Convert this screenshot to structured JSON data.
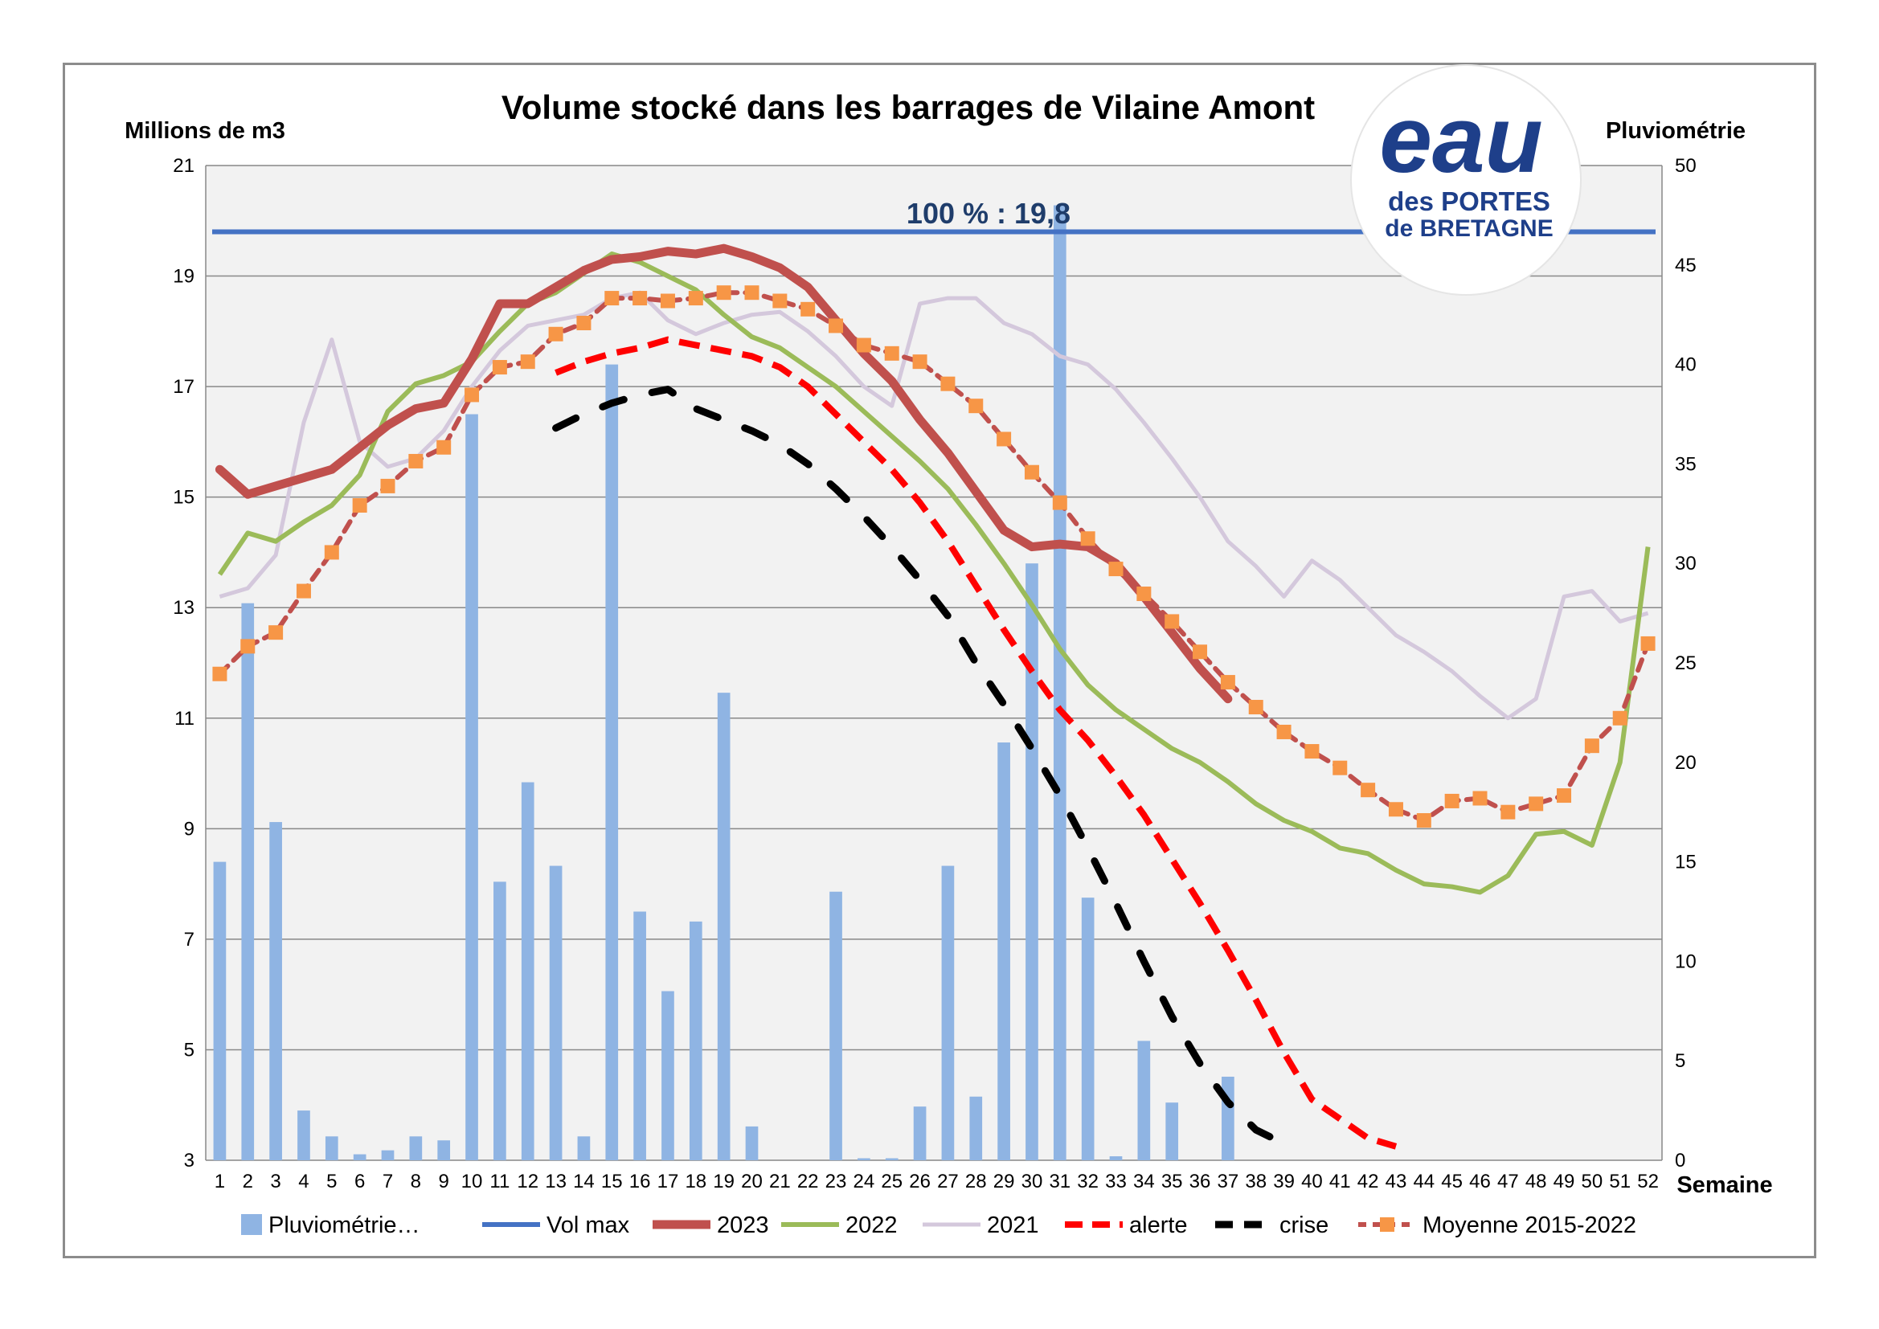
{
  "chart_data": {
    "type": "line",
    "title": "Volume stocké dans les barrages de Vilaine Amont",
    "ylabel": "Millions de m3",
    "y2label": "Pluviométrie",
    "xlabel": "Semaine",
    "ylim": [
      3,
      21
    ],
    "y2lim": [
      0,
      50
    ],
    "yticks": [
      "3",
      "5",
      "7",
      "9",
      "11",
      "13",
      "15",
      "17",
      "19",
      "21"
    ],
    "y2ticks": [
      "0",
      "5",
      "10",
      "15",
      "20",
      "25",
      "30",
      "35",
      "40",
      "45",
      "50"
    ],
    "x": [
      1,
      2,
      3,
      4,
      5,
      6,
      7,
      8,
      9,
      10,
      11,
      12,
      13,
      14,
      15,
      16,
      17,
      18,
      19,
      20,
      21,
      22,
      23,
      24,
      25,
      26,
      27,
      28,
      29,
      30,
      31,
      32,
      33,
      34,
      35,
      36,
      37,
      38,
      39,
      40,
      41,
      42,
      43,
      44,
      45,
      46,
      47,
      48,
      49,
      50,
      51,
      52
    ],
    "grid": true,
    "legend_position": "bottom",
    "annotation": "100 % : 19,8",
    "logo": {
      "line1": "eau",
      "line2": "des PORTES",
      "line3": "de BRETAGNE"
    },
    "colors": {
      "bars": "#8fb4e3",
      "volmax": "#4472c4",
      "y2023": "#c0504d",
      "y2022": "#9bbb59",
      "y2021": "#d4c8dc",
      "alerte": "#ff0000",
      "crise": "#000000",
      "moyenne_line": "#c0504d",
      "moyenne_marker": "#f79646",
      "grid": "#888888",
      "plot_bg": "#f2f2f2",
      "logo": "#1e3f8a",
      "logo_light": "#29a9e0"
    },
    "series": [
      {
        "name": "Pluviométrie…",
        "kind": "bar",
        "axis": "right",
        "values": [
          15,
          28,
          17,
          2.5,
          1.2,
          0.3,
          0.5,
          1.2,
          1.0,
          37.5,
          14,
          19,
          14.8,
          1.2,
          40,
          12.5,
          8.5,
          12,
          23.5,
          1.7,
          0,
          0,
          13.5,
          0.1,
          0.1,
          2.7,
          14.8,
          3.2,
          21,
          30,
          48,
          13.2,
          0.2,
          6,
          2.9,
          0,
          4.2,
          null,
          null,
          null,
          null,
          null,
          null,
          null,
          null,
          null,
          null,
          null,
          null,
          null,
          null,
          null
        ]
      },
      {
        "name": "Vol max",
        "kind": "line",
        "axis": "left",
        "values": [
          19.8,
          19.8,
          19.8,
          19.8,
          19.8,
          19.8,
          19.8,
          19.8,
          19.8,
          19.8,
          19.8,
          19.8,
          19.8,
          19.8,
          19.8,
          19.8,
          19.8,
          19.8,
          19.8,
          19.8,
          19.8,
          19.8,
          19.8,
          19.8,
          19.8,
          19.8,
          19.8,
          19.8,
          19.8,
          19.8,
          19.8,
          19.8,
          19.8,
          19.8,
          19.8,
          19.8,
          19.8,
          19.8,
          19.8,
          19.8,
          19.8,
          19.8,
          19.8,
          19.8,
          19.8,
          19.8,
          19.8,
          19.8,
          19.8,
          19.8,
          19.8,
          19.8
        ]
      },
      {
        "name": "2023",
        "kind": "line",
        "axis": "left",
        "values": [
          15.5,
          15.05,
          15.2,
          15.35,
          15.5,
          15.9,
          16.3,
          16.6,
          16.7,
          17.5,
          18.5,
          18.5,
          18.8,
          19.1,
          19.3,
          19.35,
          19.45,
          19.4,
          19.5,
          19.35,
          19.15,
          18.8,
          18.2,
          17.6,
          17.1,
          16.4,
          15.8,
          15.1,
          14.4,
          14.1,
          14.15,
          14.1,
          13.8,
          13.2,
          12.55,
          11.9,
          11.35,
          null,
          null,
          null,
          null,
          null,
          null,
          null,
          null,
          null,
          null,
          null,
          null,
          null,
          null,
          null
        ]
      },
      {
        "name": "2022",
        "kind": "line",
        "axis": "left",
        "values": [
          13.6,
          14.35,
          14.2,
          14.55,
          14.85,
          15.4,
          16.55,
          17.05,
          17.2,
          17.45,
          18.0,
          18.5,
          18.7,
          19.05,
          19.4,
          19.25,
          19.0,
          18.75,
          18.3,
          17.9,
          17.7,
          17.35,
          17.0,
          16.55,
          16.1,
          15.65,
          15.15,
          14.5,
          13.8,
          13.05,
          12.25,
          11.6,
          11.15,
          10.8,
          10.45,
          10.2,
          9.85,
          9.45,
          9.15,
          8.95,
          8.65,
          8.55,
          8.25,
          8.0,
          7.95,
          7.85,
          8.15,
          8.9,
          8.95,
          8.7,
          10.2,
          14.1
        ]
      },
      {
        "name": "2021",
        "kind": "line",
        "axis": "left",
        "values": [
          13.2,
          13.35,
          13.95,
          16.35,
          17.85,
          16.0,
          15.55,
          15.7,
          16.2,
          17.0,
          17.65,
          18.1,
          18.2,
          18.3,
          18.6,
          18.7,
          18.2,
          17.95,
          18.15,
          18.3,
          18.35,
          18.0,
          17.55,
          17.0,
          16.65,
          18.5,
          18.6,
          18.6,
          18.15,
          17.95,
          17.55,
          17.4,
          16.95,
          16.35,
          15.7,
          15.0,
          14.2,
          13.75,
          13.2,
          13.85,
          13.5,
          13.0,
          12.5,
          12.2,
          11.85,
          11.4,
          11.0,
          11.35,
          13.2,
          13.3,
          12.75,
          12.9
        ]
      },
      {
        "name": "alerte",
        "kind": "line",
        "axis": "left",
        "values": [
          null,
          null,
          null,
          null,
          null,
          null,
          null,
          null,
          null,
          null,
          null,
          null,
          17.25,
          17.45,
          17.6,
          17.7,
          17.85,
          17.75,
          17.65,
          17.55,
          17.35,
          17.0,
          16.5,
          16.0,
          15.5,
          14.9,
          14.2,
          13.4,
          12.6,
          11.85,
          11.15,
          10.6,
          9.95,
          9.25,
          8.45,
          7.65,
          6.8,
          5.9,
          4.95,
          4.1,
          3.75,
          3.4,
          3.25,
          null,
          null,
          null,
          null,
          null,
          null,
          null,
          null,
          null
        ]
      },
      {
        "name": "crise",
        "kind": "line",
        "axis": "left",
        "values": [
          null,
          null,
          null,
          null,
          null,
          null,
          null,
          null,
          null,
          null,
          null,
          null,
          16.25,
          16.5,
          16.7,
          16.85,
          16.95,
          16.6,
          16.4,
          16.2,
          15.95,
          15.6,
          15.15,
          14.65,
          14.1,
          13.5,
          12.85,
          12.0,
          11.25,
          10.45,
          9.6,
          8.65,
          7.65,
          6.6,
          5.6,
          4.75,
          4.05,
          3.55,
          3.3,
          null,
          null,
          null,
          null,
          null,
          null,
          null,
          null,
          null,
          null,
          null,
          null,
          null
        ]
      },
      {
        "name": "Moyenne 2015-2022",
        "kind": "line-marker",
        "axis": "left",
        "values": [
          11.8,
          12.3,
          12.55,
          13.3,
          14.0,
          14.85,
          15.2,
          15.65,
          15.9,
          16.85,
          17.35,
          17.45,
          17.95,
          18.15,
          18.6,
          18.6,
          18.55,
          18.6,
          18.7,
          18.7,
          18.55,
          18.4,
          18.1,
          17.75,
          17.6,
          17.45,
          17.05,
          16.65,
          16.05,
          15.45,
          14.9,
          14.25,
          13.7,
          13.25,
          12.75,
          12.2,
          11.65,
          11.2,
          10.75,
          10.4,
          10.1,
          9.7,
          9.35,
          9.15,
          9.5,
          9.55,
          9.3,
          9.45,
          9.6,
          10.5,
          11.0,
          12.35
        ]
      }
    ]
  }
}
